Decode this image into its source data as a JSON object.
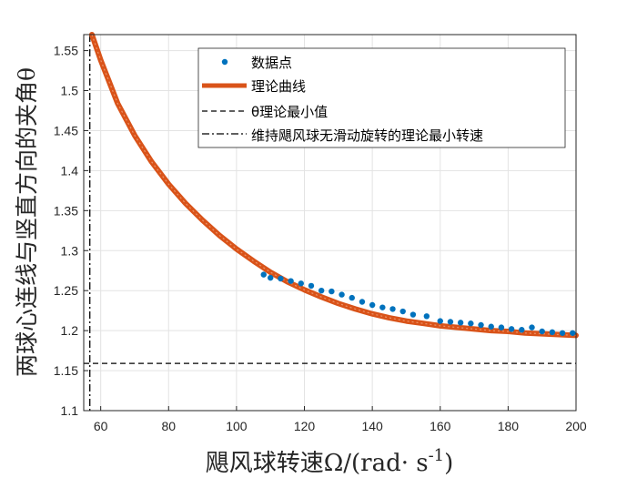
{
  "chart_data": {
    "type": "line",
    "xlabel": "飓风球转速Ω/(rad· s",
    "xlabel_sup": "-1",
    "xlabel_close": ")",
    "ylabel": "两球心连线与竖直方向的夹角θ",
    "xlim": [
      55,
      200
    ],
    "ylim": [
      1.1,
      1.57
    ],
    "xticks": [
      60,
      80,
      100,
      120,
      140,
      160,
      180,
      200
    ],
    "yticks": [
      1.1,
      1.15,
      1.2,
      1.25,
      1.3,
      1.35,
      1.4,
      1.45,
      1.5,
      1.55
    ],
    "grid": true,
    "legend_position": "top-right",
    "colors": {
      "points": "#0072BD",
      "curve": "#D95319",
      "reference": "#000000"
    },
    "theory_curve": {
      "name": "理论曲线",
      "x": [
        57.4,
        60,
        65,
        70,
        75,
        80,
        85,
        90,
        95,
        100,
        105,
        110,
        115,
        120,
        125,
        130,
        135,
        140,
        145,
        150,
        155,
        160,
        165,
        170,
        175,
        180,
        185,
        190,
        195,
        200
      ],
      "y": [
        1.571,
        1.538,
        1.484,
        1.444,
        1.411,
        1.383,
        1.359,
        1.338,
        1.319,
        1.302,
        1.287,
        1.273,
        1.261,
        1.251,
        1.242,
        1.234,
        1.227,
        1.221,
        1.216,
        1.212,
        1.209,
        1.206,
        1.204,
        1.202,
        1.2,
        1.199,
        1.197,
        1.196,
        1.195,
        1.194
      ]
    },
    "data_points": {
      "name": "数据点",
      "x": [
        108,
        110,
        113,
        116,
        119,
        122,
        125,
        128,
        131,
        134,
        137,
        140,
        143,
        146,
        149,
        152,
        156,
        160,
        163,
        166,
        169,
        172,
        175,
        178,
        181,
        184,
        187,
        190,
        193,
        196,
        199
      ],
      "y": [
        1.27,
        1.266,
        1.265,
        1.262,
        1.259,
        1.256,
        1.25,
        1.249,
        1.245,
        1.241,
        1.236,
        1.232,
        1.229,
        1.227,
        1.224,
        1.22,
        1.218,
        1.212,
        1.211,
        1.21,
        1.209,
        1.207,
        1.205,
        1.204,
        1.202,
        1.201,
        1.204,
        1.199,
        1.198,
        1.197,
        1.197
      ]
    },
    "theta_min": {
      "name": "θ理论最小值",
      "y": 1.159
    },
    "omega_min": {
      "name": "维持飓风球无滑动旋转的理论最小转速",
      "x": 56.8
    }
  }
}
